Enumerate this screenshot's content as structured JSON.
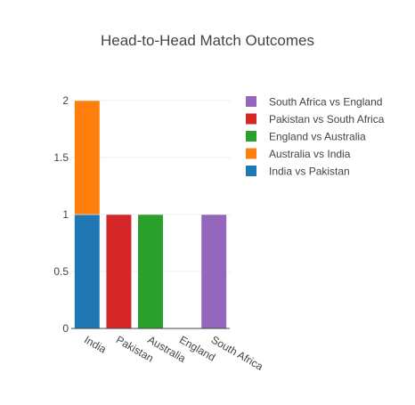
{
  "chart_data": {
    "type": "bar",
    "barmode": "stack",
    "title": "Head-to-Head Match Outcomes",
    "xlabel": "",
    "ylabel": "",
    "categories": [
      "India",
      "Pakistan",
      "Australia",
      "England",
      "South Africa"
    ],
    "ylim": [
      0,
      2
    ],
    "yticks": [
      0,
      0.5,
      1,
      1.5,
      2
    ],
    "ytick_labels": [
      "0",
      "0.5",
      "1",
      "1.5",
      "2"
    ],
    "grid": true,
    "legend_position": "top-right",
    "series": [
      {
        "name": "India vs Pakistan",
        "color": "#1f77b4",
        "values": [
          1,
          0,
          0,
          0,
          0
        ]
      },
      {
        "name": "Australia vs India",
        "color": "#ff7f0e",
        "values": [
          1,
          0,
          0,
          0,
          0
        ]
      },
      {
        "name": "England vs Australia",
        "color": "#2ca02c",
        "values": [
          0,
          0,
          1,
          0,
          0
        ]
      },
      {
        "name": "Pakistan vs South Africa",
        "color": "#d62728",
        "values": [
          0,
          1,
          0,
          0,
          0
        ]
      },
      {
        "name": "South Africa vs England",
        "color": "#9467bd",
        "values": [
          0,
          0,
          0,
          0,
          1
        ]
      }
    ],
    "legend_order": [
      "South Africa vs England",
      "Pakistan vs South Africa",
      "England vs Australia",
      "Australia vs India",
      "India vs Pakistan"
    ]
  }
}
